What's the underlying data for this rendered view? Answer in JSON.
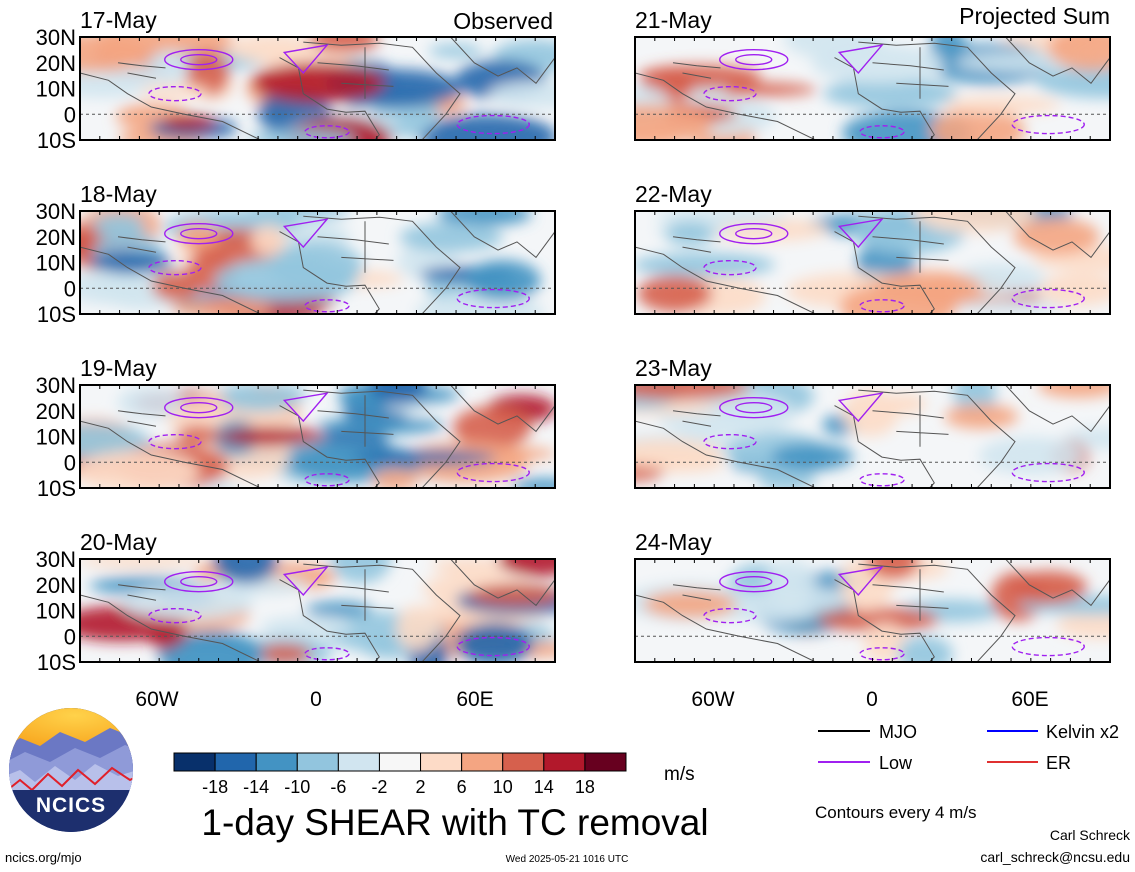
{
  "header": {
    "left_column_label": "Observed",
    "right_column_label": "Projected Sum"
  },
  "panels_left": [
    {
      "date": "17-May"
    },
    {
      "date": "18-May"
    },
    {
      "date": "19-May"
    },
    {
      "date": "20-May"
    }
  ],
  "panels_right": [
    {
      "date": "21-May"
    },
    {
      "date": "22-May"
    },
    {
      "date": "23-May"
    },
    {
      "date": "24-May"
    }
  ],
  "axes": {
    "lat_ticks": [
      "30N",
      "20N",
      "10N",
      "0",
      "10S"
    ],
    "lon_ticks": [
      "60W",
      "0",
      "60E"
    ]
  },
  "legend": {
    "items": [
      {
        "label": "MJO",
        "color": "#000000"
      },
      {
        "label": "Kelvin x2",
        "color": "#0000ff"
      },
      {
        "label": "Low",
        "color": "#a020f0"
      },
      {
        "label": "ER",
        "color": "#e03030"
      }
    ],
    "contour_note": "Contours every 4 m/s"
  },
  "colorbar": {
    "labels": [
      "-18",
      "-14",
      "-10",
      "-6",
      "-2",
      "2",
      "6",
      "10",
      "14",
      "18"
    ],
    "colors": [
      "#08306b",
      "#2166ac",
      "#4393c3",
      "#92c5de",
      "#d1e5f0",
      "#f7f7f7",
      "#fddbc7",
      "#f4a582",
      "#d6604d",
      "#b2182b",
      "#67001f"
    ],
    "unit": "m/s"
  },
  "title": "1-day SHEAR with TC removal",
  "logo": {
    "text": "NCICS"
  },
  "footer": {
    "url": "ncics.org/mjo",
    "timestamp": "Wed 2025-05-21 1016 UTC",
    "author": "Carl Schreck",
    "email": "carl_schreck@ncsu.edu"
  }
}
